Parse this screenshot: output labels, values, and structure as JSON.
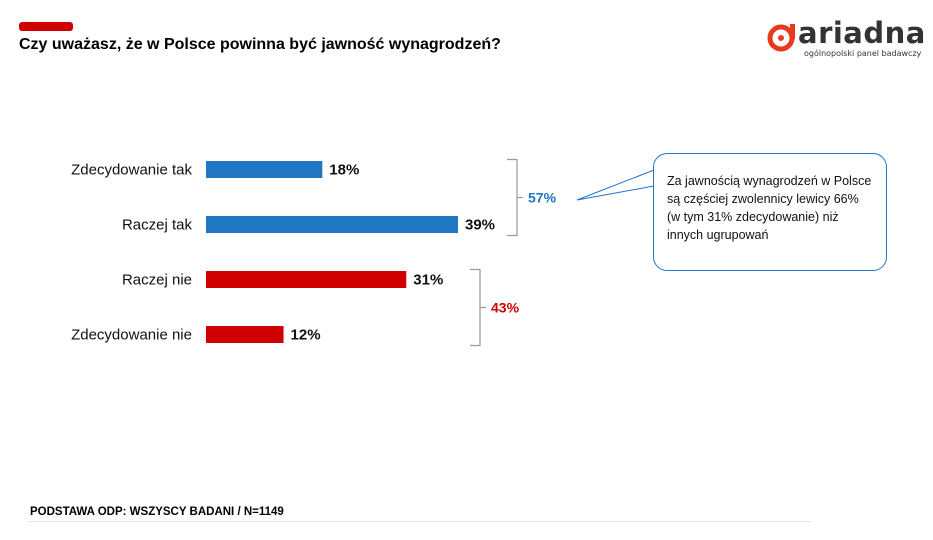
{
  "header": {
    "title": "Czy uważasz, że w Polsce powinna być jawność wynagrodzeń?",
    "accent_color": "#d00000"
  },
  "logo": {
    "name": "ariadna",
    "tagline": "ogólnopolski panel badawczy",
    "mark_color": "#e8391d"
  },
  "chart_data": {
    "type": "bar",
    "orientation": "horizontal",
    "categories": [
      "Zdecydowanie tak",
      "Raczej tak",
      "Raczej nie",
      "Zdecydowanie nie"
    ],
    "values": [
      18,
      39,
      31,
      12
    ],
    "value_labels": [
      "18%",
      "39%",
      "31%",
      "12%"
    ],
    "bar_colors": [
      "#1f76c2",
      "#1f76c2",
      "#d00000",
      "#d00000"
    ],
    "xlim": [
      0,
      39
    ],
    "grid": false,
    "groups": [
      {
        "label": "57%",
        "categories": [
          "Zdecydowanie tak",
          "Raczej tak"
        ],
        "color": "#1f76c2"
      },
      {
        "label": "43%",
        "categories": [
          "Raczej nie",
          "Zdecydowanie nie"
        ],
        "color": "#d00000"
      }
    ]
  },
  "callout": {
    "text": "Za jawnością wynagrodzeń w Polsce są częściej zwolennicy lewicy 66% (w tym 31% zdecydowanie) niż innych ugrupowań",
    "border_color": "#1f76c2"
  },
  "footer": {
    "text": "PODSTAWA ODP: WSZYSCY BADANI / N=1149"
  }
}
